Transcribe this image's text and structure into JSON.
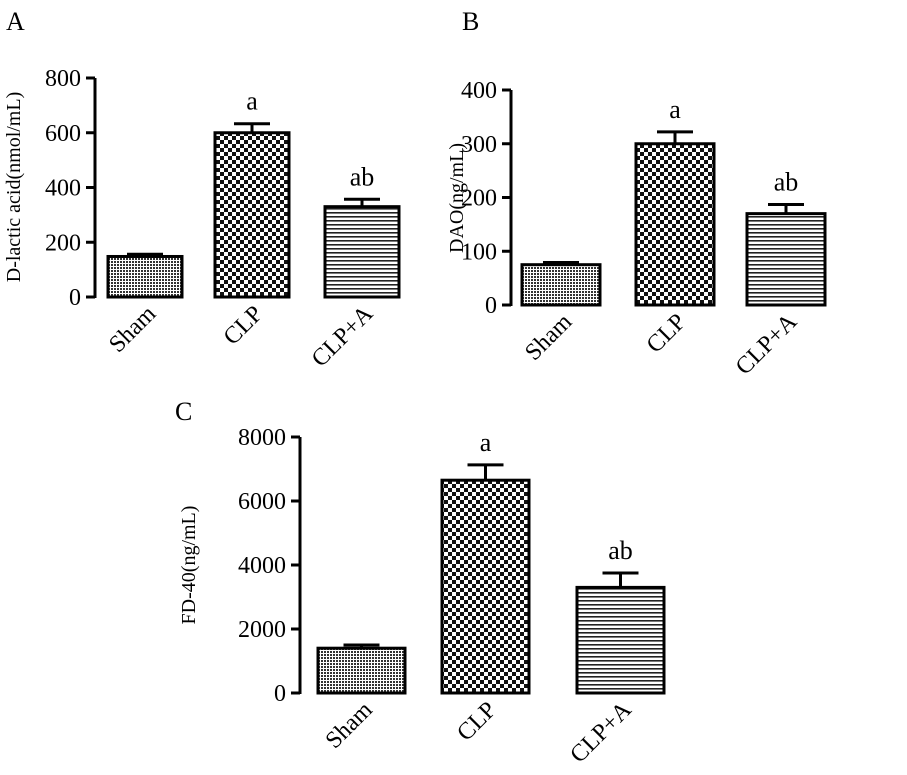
{
  "chart_data": [
    {
      "panel": "A",
      "type": "bar",
      "ylabel": "D-lactic acid(nmol/mL)",
      "categories": [
        "Sham",
        "CLP",
        "CLP+A"
      ],
      "values": [
        148,
        600,
        330
      ],
      "errors": [
        8,
        33,
        27
      ],
      "annotations": [
        "",
        "a",
        "ab"
      ],
      "ylim": [
        0,
        800
      ],
      "yticks": [
        0,
        200,
        400,
        600,
        800
      ],
      "fills": [
        "dots",
        "checker",
        "hlines"
      ]
    },
    {
      "panel": "B",
      "type": "bar",
      "ylabel": "DAO(ng/mL)",
      "categories": [
        "Sham",
        "CLP",
        "CLP+A"
      ],
      "values": [
        75,
        300,
        170
      ],
      "errors": [
        4,
        22,
        17
      ],
      "annotations": [
        "",
        "a",
        "ab"
      ],
      "ylim": [
        0,
        400
      ],
      "yticks": [
        0,
        100,
        200,
        300,
        400
      ],
      "fills": [
        "dots",
        "checker",
        "hlines"
      ]
    },
    {
      "panel": "C",
      "type": "bar",
      "ylabel": "FD-40(ng/mL)",
      "categories": [
        "Sham",
        "CLP",
        "CLP+A"
      ],
      "values": [
        1400,
        6650,
        3300
      ],
      "errors": [
        100,
        480,
        450
      ],
      "annotations": [
        "",
        "a",
        "ab"
      ],
      "ylim": [
        0,
        8000
      ],
      "yticks": [
        0,
        2000,
        4000,
        6000,
        8000
      ],
      "fills": [
        "dots",
        "checker",
        "hlines"
      ]
    }
  ]
}
